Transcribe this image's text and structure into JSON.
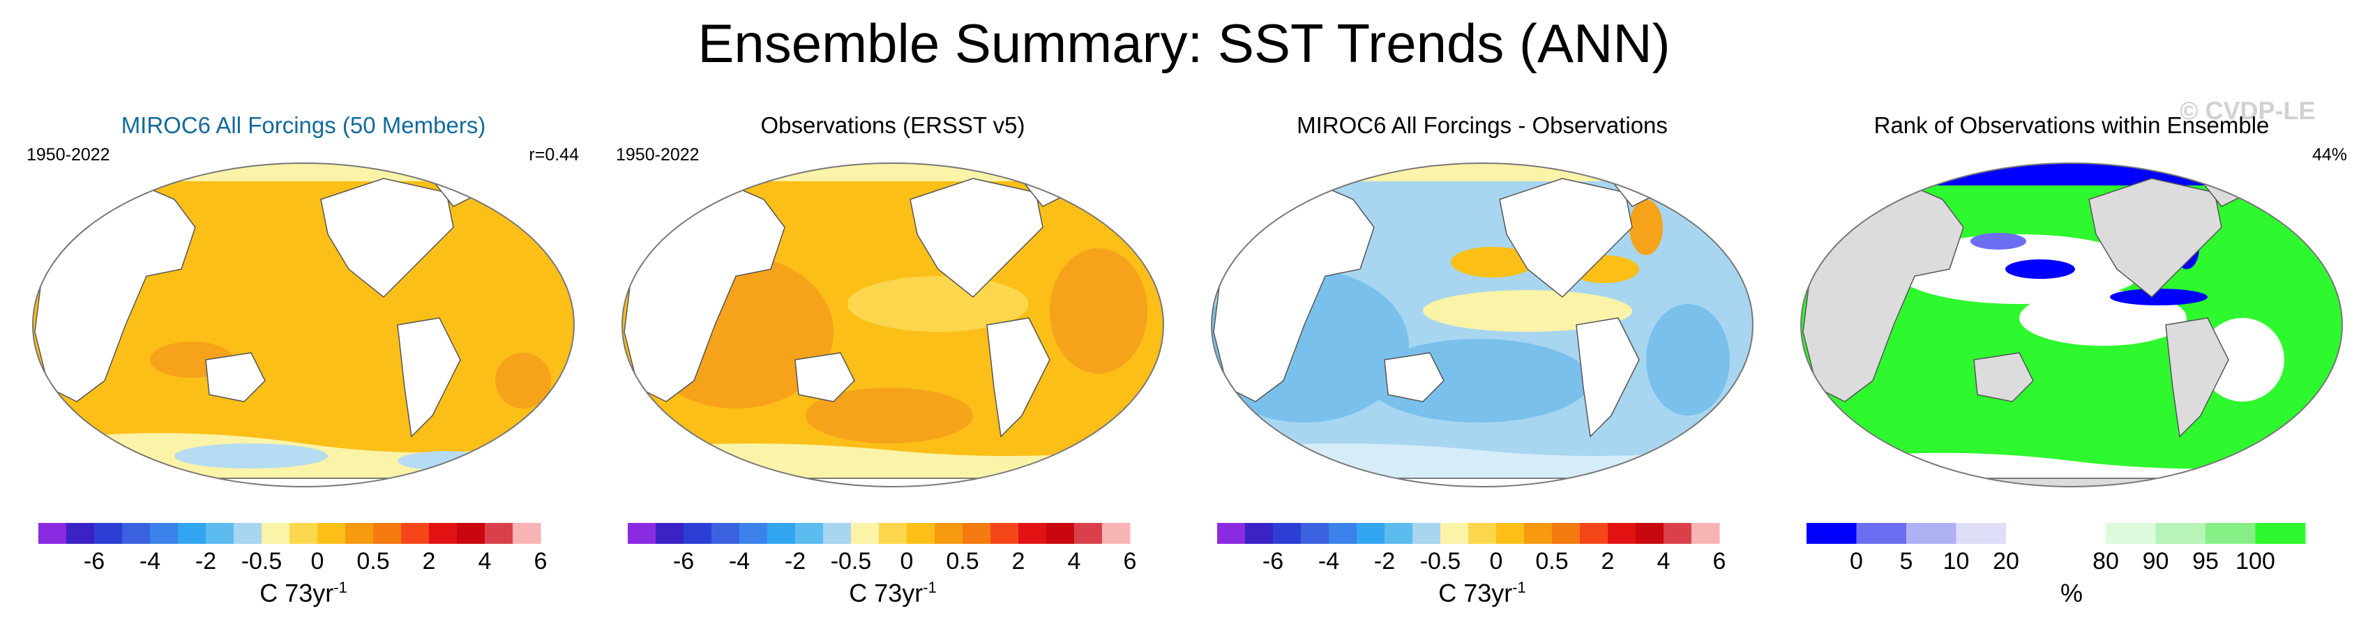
{
  "title": "Ensemble Summary: SST Trends (ANN)",
  "watermark": "© CVDP-LE",
  "colors": {
    "continent": "#ffffff",
    "continent_rank": "#dcdcdc",
    "ocean_warm": "#fbbf18",
    "ocean_hot": "#f6a21a",
    "ocean_cool": "#b5dcf2",
    "ocean_blue": "#79c1ec",
    "accent_title": "#136a9a"
  },
  "trend_colorbar": {
    "colors": [
      "#8a2be2",
      "#3a22c4",
      "#2b3fd6",
      "#3a62df",
      "#3b82ea",
      "#33a6f2",
      "#5cbcf0",
      "#a8d6f0",
      "#fbf3a8",
      "#fcd64c",
      "#fbbf18",
      "#f79a10",
      "#f57a10",
      "#f5461a",
      "#e21212",
      "#c8070f",
      "#d9404a",
      "#f8b4b4"
    ],
    "labels": [
      "-6",
      "-4",
      "-2",
      "-0.5",
      "0",
      "0.5",
      "2",
      "4",
      "6"
    ],
    "unit": "C 73yr",
    "unit_exp": "-1"
  },
  "rank_colorbar": {
    "colors": [
      "#0000ff",
      "#6d6df2",
      "#b0b0f4",
      "#dedef9",
      "#ffffff",
      "#ffffff",
      "#ddfadd",
      "#b8f4b8",
      "#86f086",
      "#2ef82e"
    ],
    "labels": [
      "0",
      "5",
      "10",
      "20",
      "80",
      "90",
      "95",
      "100"
    ],
    "unit": "%"
  },
  "chart_data": [
    {
      "type": "heatmap",
      "title": "MIROC6 All Forcings (50 Members)",
      "period": "1950-2022",
      "stat": "r=0.44",
      "variable": "SST trend (ANN)",
      "units": "C 73yr-1",
      "color_levels": [
        -6,
        -4,
        -2,
        -0.5,
        0,
        0.5,
        2,
        4,
        6
      ],
      "summary": "Broad warming of ~0.5–2 C over most oceans; small cooling near Southern Ocean/Antarctic margins."
    },
    {
      "type": "heatmap",
      "title": "Observations (ERSST v5)",
      "period": "1950-2022",
      "stat": "",
      "variable": "SST trend (ANN)",
      "units": "C 73yr-1",
      "color_levels": [
        -6,
        -4,
        -2,
        -0.5,
        0,
        0.5,
        2,
        4,
        6
      ],
      "summary": "Widespread warming of ~0.5–2 C; strongest over Indian Ocean, western Pacific and North Atlantic; weak trends in eastern tropical Pacific and Southern Ocean."
    },
    {
      "type": "heatmap",
      "title": "MIROC6 All Forcings - Observations",
      "period": "",
      "stat": "",
      "variable": "SST trend difference (ANN)",
      "units": "C 73yr-1",
      "color_levels": [
        -6,
        -4,
        -2,
        -0.5,
        0,
        0.5,
        2,
        4,
        6
      ],
      "summary": "Model minus observations mostly negative (-0.5 to -2) in Indian Ocean and South Pacific; positive in eastern tropical Pacific and Gulf Stream region."
    },
    {
      "type": "heatmap",
      "title": "Rank of Observations within Ensemble",
      "period": "",
      "stat": "44%",
      "variable": "Rank of observations within ensemble",
      "units": "%",
      "color_levels": [
        0,
        5,
        10,
        20,
        80,
        90,
        95,
        100
      ],
      "summary": "Large areas at 100% rank (green) in Indian Ocean, Southern Ocean and Atlantic; low ranks (blue) in eastern tropical Pacific and Arctic."
    }
  ]
}
